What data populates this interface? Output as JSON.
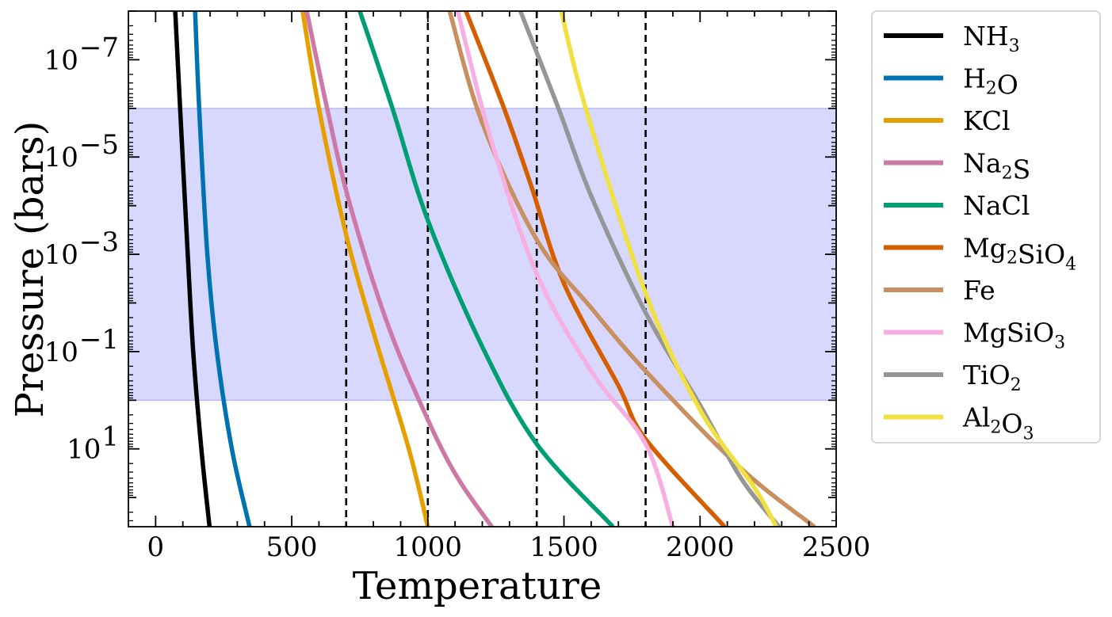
{
  "chart_data": {
    "type": "line",
    "title": "",
    "xlabel": "Temperature",
    "ylabel": "Pressure (bars)",
    "xlim": [
      -100,
      2500
    ],
    "ylim_log10": [
      -8,
      2.6
    ],
    "y_inverted": true,
    "y_scale": "log",
    "grid": false,
    "legend_position": "outside-right",
    "x_ticks": [
      {
        "value": 0,
        "label": "0"
      },
      {
        "value": 500,
        "label": "500"
      },
      {
        "value": 1000,
        "label": "1000"
      },
      {
        "value": 1500,
        "label": "1500"
      },
      {
        "value": 2000,
        "label": "2000"
      },
      {
        "value": 2500,
        "label": "2500"
      }
    ],
    "y_ticks": [
      {
        "log10": -7,
        "base": "10",
        "exp": "−7"
      },
      {
        "log10": -5,
        "base": "10",
        "exp": "−5"
      },
      {
        "log10": -3,
        "base": "10",
        "exp": "−3"
      },
      {
        "log10": -1,
        "base": "10",
        "exp": "−1"
      },
      {
        "log10": 1,
        "base": "10",
        "exp": "1"
      }
    ],
    "shaded_band": {
      "log10_from": -6,
      "log10_to": 0,
      "color": "#d8d8fe",
      "edge": "#b0b0ee"
    },
    "vertical_lines": [
      700,
      1000,
      1400,
      1800
    ],
    "series": [
      {
        "name": "NH",
        "sub": "3",
        "tail": "",
        "color": "#000000",
        "points": [
          [
            72,
            -8
          ],
          [
            90,
            -6
          ],
          [
            118,
            -3
          ],
          [
            138,
            -1
          ],
          [
            168,
            1
          ],
          [
            198,
            2.6
          ]
        ]
      },
      {
        "name": "H",
        "sub": "2",
        "tail": "O",
        "color": "#0072b2",
        "points": [
          [
            145,
            -8
          ],
          [
            160,
            -6
          ],
          [
            190,
            -3
          ],
          [
            225,
            -1
          ],
          [
            280,
            1
          ],
          [
            345,
            2.6
          ]
        ]
      },
      {
        "name": "KCl",
        "sub": "",
        "tail": "",
        "color": "#e69f00",
        "points": [
          [
            540,
            -8
          ],
          [
            600,
            -6
          ],
          [
            700,
            -3.4
          ],
          [
            800,
            -1.4
          ],
          [
            930,
            1
          ],
          [
            1000,
            2.6
          ]
        ]
      },
      {
        "name": "Na",
        "sub": "2",
        "tail": "S",
        "color": "#cc79a7",
        "points": [
          [
            555,
            -8
          ],
          [
            630,
            -6
          ],
          [
            710,
            -4.1
          ],
          [
            850,
            -1.6
          ],
          [
            1000,
            0.4
          ],
          [
            1110,
            1.6
          ],
          [
            1235,
            2.6
          ]
        ]
      },
      {
        "name": "NaCl",
        "sub": "",
        "tail": "",
        "color": "#009e73",
        "points": [
          [
            750,
            -8
          ],
          [
            870,
            -6
          ],
          [
            1000,
            -3.7
          ],
          [
            1200,
            -1.1
          ],
          [
            1400,
            0.9
          ],
          [
            1680,
            2.6
          ]
        ]
      },
      {
        "name": "Mg",
        "sub": "2",
        "tail": "SiO",
        "sub2": "4",
        "color": "#d55e00",
        "points": [
          [
            1140,
            -8
          ],
          [
            1280,
            -6
          ],
          [
            1380,
            -4.4
          ],
          [
            1500,
            -2.4
          ],
          [
            1700,
            -0.3
          ],
          [
            1800,
            0.8
          ],
          [
            2090,
            2.6
          ]
        ]
      },
      {
        "name": "Fe",
        "sub": "",
        "tail": "",
        "color": "#c89060",
        "points": [
          [
            1080,
            -8
          ],
          [
            1200,
            -5.7
          ],
          [
            1400,
            -3.3
          ],
          [
            1600,
            -1.9
          ],
          [
            1800,
            -0.6
          ],
          [
            2150,
            1.4
          ],
          [
            2420,
            2.6
          ]
        ]
      },
      {
        "name": "MgSiO",
        "sub": "3",
        "tail": "",
        "color": "#f7aee0",
        "points": [
          [
            1110,
            -8
          ],
          [
            1230,
            -5.4
          ],
          [
            1400,
            -2.6
          ],
          [
            1600,
            -0.6
          ],
          [
            1800,
            0.9
          ],
          [
            1900,
            2.6
          ]
        ]
      },
      {
        "name": "TiO",
        "sub": "2",
        "tail": "",
        "color": "#969696",
        "points": [
          [
            1340,
            -8
          ],
          [
            1480,
            -6
          ],
          [
            1600,
            -4.2
          ],
          [
            1800,
            -1.8
          ],
          [
            2000,
            0.1
          ],
          [
            2150,
            1.6
          ],
          [
            2290,
            2.6
          ]
        ]
      },
      {
        "name": "Al",
        "sub": "2",
        "tail": "O",
        "sub2": "3",
        "color": "#f0e040",
        "points": [
          [
            1490,
            -8
          ],
          [
            1580,
            -6
          ],
          [
            1800,
            -2.2
          ],
          [
            2000,
            0.2
          ],
          [
            2200,
            1.8
          ],
          [
            2280,
            2.6
          ]
        ]
      }
    ]
  }
}
